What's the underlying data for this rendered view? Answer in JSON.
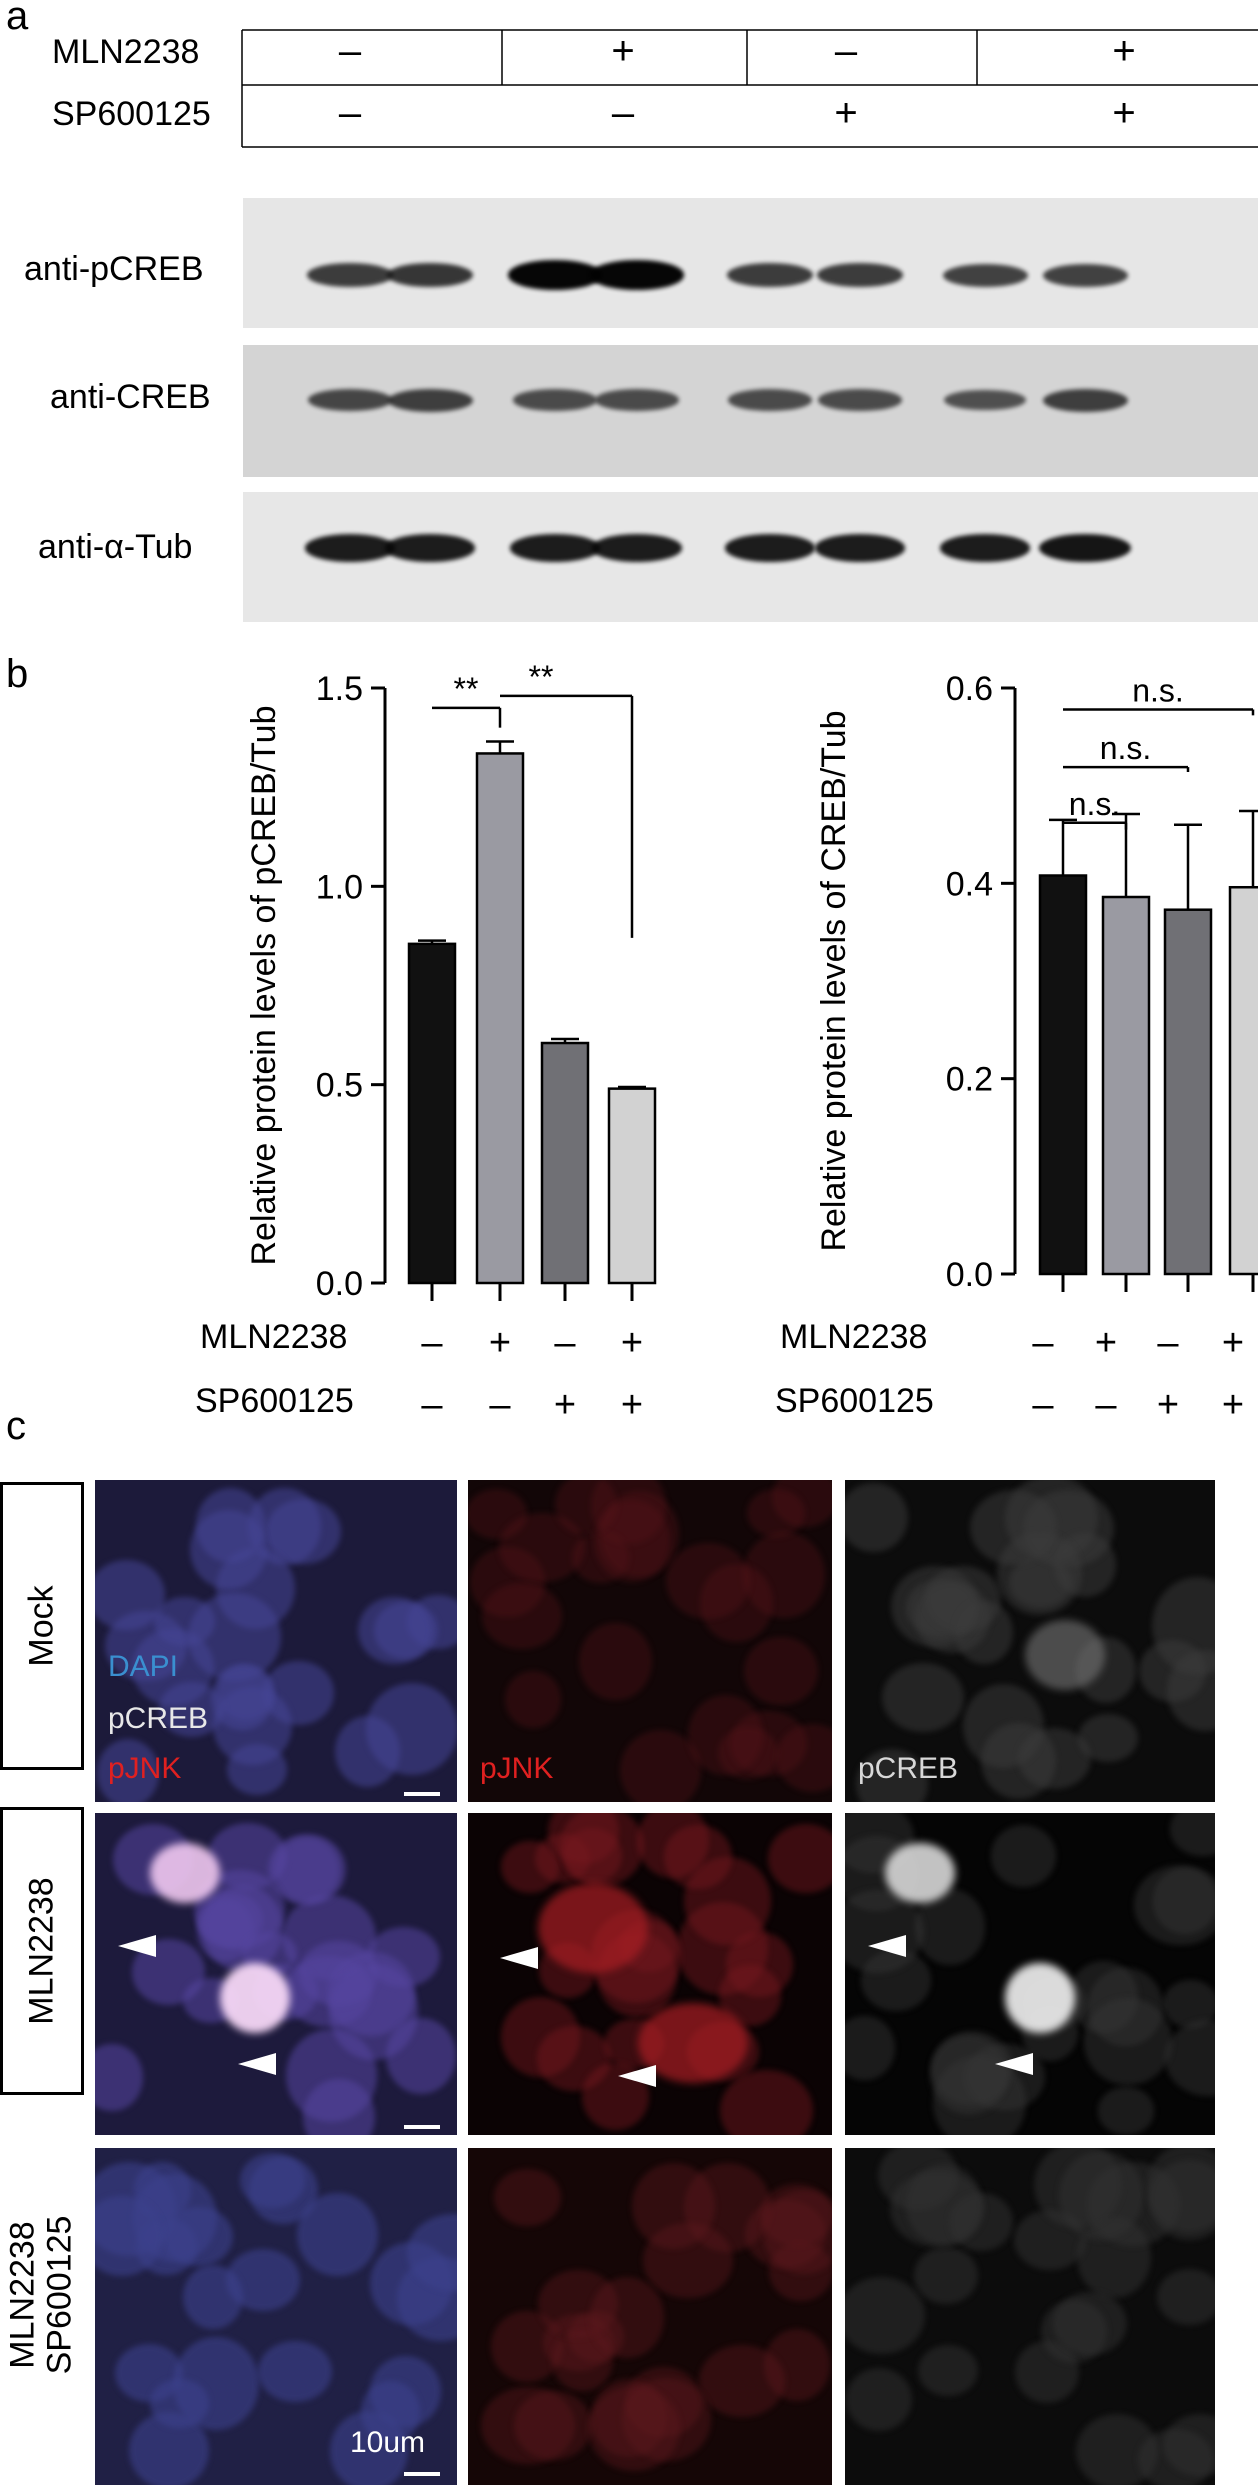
{
  "panel_a": {
    "letter": "a",
    "table": {
      "rows": [
        {
          "label": "MLN2238",
          "signs": [
            "–",
            "+",
            "–",
            "+"
          ]
        },
        {
          "label": "SP600125",
          "signs": [
            "–",
            "–",
            "+",
            "+"
          ]
        }
      ]
    },
    "blots": [
      {
        "label": "anti-pCREB",
        "intensities": [
          0.55,
          0.6,
          0.95,
          0.95,
          0.55,
          0.55,
          0.5,
          0.5
        ]
      },
      {
        "label": "anti-CREB",
        "intensities": [
          0.45,
          0.5,
          0.4,
          0.4,
          0.4,
          0.4,
          0.35,
          0.5
        ]
      },
      {
        "label": "anti-α-Tub",
        "intensities": [
          0.8,
          0.8,
          0.8,
          0.8,
          0.8,
          0.8,
          0.8,
          0.85
        ]
      }
    ]
  },
  "panel_b": {
    "letter": "b",
    "condition_rows": [
      {
        "label": "MLN2238",
        "signs": [
          "–",
          "+",
          "–",
          "+"
        ]
      },
      {
        "label": "SP600125",
        "signs": [
          "–",
          "–",
          "+",
          "+"
        ]
      }
    ]
  },
  "chart_data": [
    {
      "type": "bar",
      "ylabel": "Relative protein levels of pCREB/Tub",
      "ylim": [
        0.0,
        1.5
      ],
      "yticks": [
        "0.0",
        "0.5",
        "1.0",
        "1.5"
      ],
      "ytick_values": [
        0.0,
        0.5,
        1.0,
        1.5
      ],
      "values": [
        0.855,
        1.335,
        0.605,
        0.49
      ],
      "errors": [
        0.008,
        0.03,
        0.01,
        0.004
      ],
      "colors": [
        "#111111",
        "#9a9aa2",
        "#707075",
        "#d2d2d2"
      ],
      "significance": [
        {
          "from": 0,
          "to": 1,
          "label": "**"
        },
        {
          "from": 1,
          "to": 3,
          "label": "**"
        }
      ]
    },
    {
      "type": "bar",
      "ylabel": "Relative protein levels of CREB/Tub",
      "ylim": [
        0.0,
        0.6
      ],
      "yticks": [
        "0.0",
        "0.2",
        "0.4",
        "0.6"
      ],
      "ytick_values": [
        0.0,
        0.2,
        0.4,
        0.6
      ],
      "values": [
        0.408,
        0.386,
        0.373,
        0.396
      ],
      "errors": [
        0.057,
        0.085,
        0.087,
        0.078
      ],
      "colors": [
        "#111111",
        "#9a9aa2",
        "#707075",
        "#d2d2d2"
      ],
      "significance": [
        {
          "from": 0,
          "to": 1,
          "label": "n.s."
        },
        {
          "from": 0,
          "to": 2,
          "label": "n.s."
        },
        {
          "from": 0,
          "to": 3,
          "label": "n.s."
        }
      ]
    }
  ],
  "panel_c": {
    "letter": "c",
    "rows": [
      {
        "label": "Mock"
      },
      {
        "label": "MLN2238"
      },
      {
        "label": "MLN2238\nSP600125"
      }
    ],
    "overlay_legend": {
      "dapi": "DAPI",
      "pcreb": "pCREB",
      "pjnk": "pJNK"
    },
    "channel_labels": {
      "pjnk": "pJNK",
      "pcreb": "pCREB"
    },
    "scale_bar": "10um"
  }
}
